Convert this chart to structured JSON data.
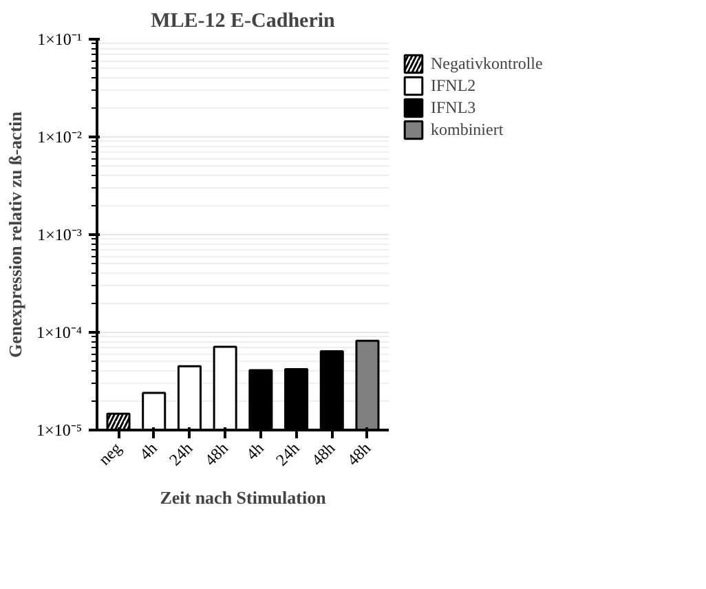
{
  "chart_data": {
    "type": "bar",
    "title": "MLE-12 E-Cadherin",
    "xlabel": "Zeit nach Stimulation",
    "ylabel": "Genexpression relativ zu ß-actin",
    "categories": [
      "neg",
      "4h",
      "24h",
      "48h",
      "4h",
      "24h",
      "48h",
      "48h"
    ],
    "series": [
      {
        "name": "Negativkontrolle",
        "color": "#ffffff",
        "values": [
          1.47e-05,
          null,
          null,
          null,
          null,
          null,
          null,
          null
        ]
      },
      {
        "name": "IFNL2",
        "color": "#ffffff",
        "values": [
          null,
          2.4e-05,
          4.5e-05,
          7.1e-05,
          null,
          null,
          null,
          null
        ]
      },
      {
        "name": "IFNL3",
        "color": "#000000",
        "values": [
          null,
          null,
          null,
          null,
          4.1e-05,
          4.2e-05,
          6.4e-05,
          null
        ]
      },
      {
        "name": "kombiniert",
        "color": "#808080",
        "values": [
          null,
          null,
          null,
          null,
          null,
          null,
          null,
          8.2e-05
        ]
      }
    ],
    "log": true,
    "ylim": [
      1e-05,
      0.1
    ],
    "yticks": [
      {
        "value": 1e-05,
        "label": "1×10⁻⁵"
      },
      {
        "value": 0.0001,
        "label": "1×10⁻⁴"
      },
      {
        "value": 0.001,
        "label": "1×10⁻³"
      },
      {
        "value": 0.01,
        "label": "1×10⁻²"
      },
      {
        "value": 0.1,
        "label": "1×10⁻¹"
      }
    ],
    "grid": "y",
    "legend": "top right"
  }
}
